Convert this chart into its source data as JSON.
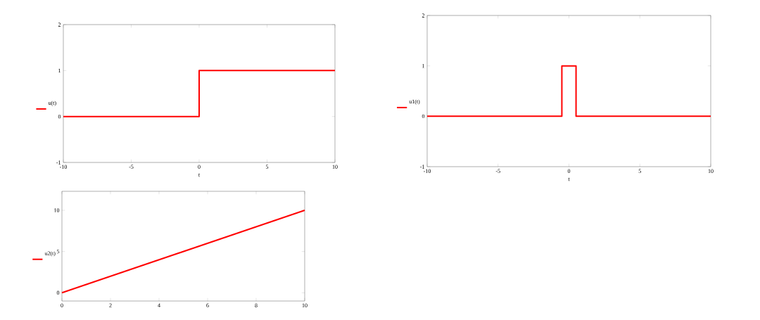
{
  "chart_data": [
    {
      "type": "line",
      "xlabel": "t",
      "xlim": [
        -10,
        10
      ],
      "ylim": [
        -1,
        2
      ],
      "xticks": [
        -10,
        -5,
        0,
        5,
        10
      ],
      "yticks": [
        -1,
        0,
        1,
        2
      ],
      "legend": "left",
      "series": [
        {
          "name": "u(t)",
          "color": "#ff0000",
          "x": [
            -10,
            0,
            0,
            10
          ],
          "values": [
            0,
            0,
            1,
            1
          ]
        }
      ]
    },
    {
      "type": "line",
      "xlabel": "t",
      "xlim": [
        -10,
        10
      ],
      "ylim": [
        -1,
        2
      ],
      "xticks": [
        -10,
        -5,
        0,
        5,
        10
      ],
      "yticks": [
        -1,
        0,
        1,
        2
      ],
      "legend": "left",
      "series": [
        {
          "name": "u1(t)",
          "color": "#ff0000",
          "x": [
            -10,
            -0.5,
            -0.5,
            0.5,
            0.5,
            10
          ],
          "values": [
            0,
            0,
            1,
            1,
            0,
            0
          ]
        }
      ]
    },
    {
      "type": "line",
      "xlim": [
        0,
        10
      ],
      "ylim": [
        -1,
        12.3
      ],
      "xticks": [
        0,
        2,
        4,
        6,
        8,
        10
      ],
      "yticks": [
        0,
        5,
        10
      ],
      "legend": "left",
      "series": [
        {
          "name": "u2(t)",
          "color": "#ff0000",
          "x": [
            0,
            10
          ],
          "values": [
            0,
            10
          ]
        }
      ]
    }
  ]
}
